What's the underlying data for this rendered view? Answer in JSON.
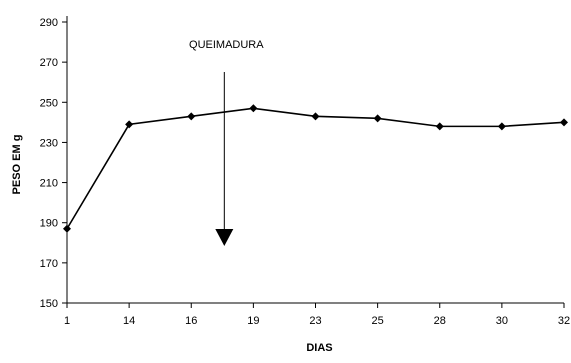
{
  "chart_data": {
    "type": "line",
    "title": "",
    "xlabel": "DIAS",
    "ylabel": "PESO EM g",
    "categories": [
      "1",
      "14",
      "16",
      "19",
      "23",
      "25",
      "28",
      "30",
      "32"
    ],
    "series": [
      {
        "values": [
          187,
          239,
          243,
          247,
          243,
          242,
          238,
          238,
          240
        ]
      }
    ],
    "ylim": [
      150,
      290
    ],
    "yticks": [
      "150",
      "170",
      "190",
      "210",
      "230",
      "250",
      "270",
      "290"
    ],
    "grid": false,
    "legend": "none",
    "annotations": [
      {
        "text": "QUEIMADURA",
        "between": [
          "16",
          "19"
        ],
        "kind": "downward-arrow"
      }
    ],
    "colors": {
      "line": "#000000",
      "marker": "#000000",
      "axis": "#000000"
    }
  }
}
